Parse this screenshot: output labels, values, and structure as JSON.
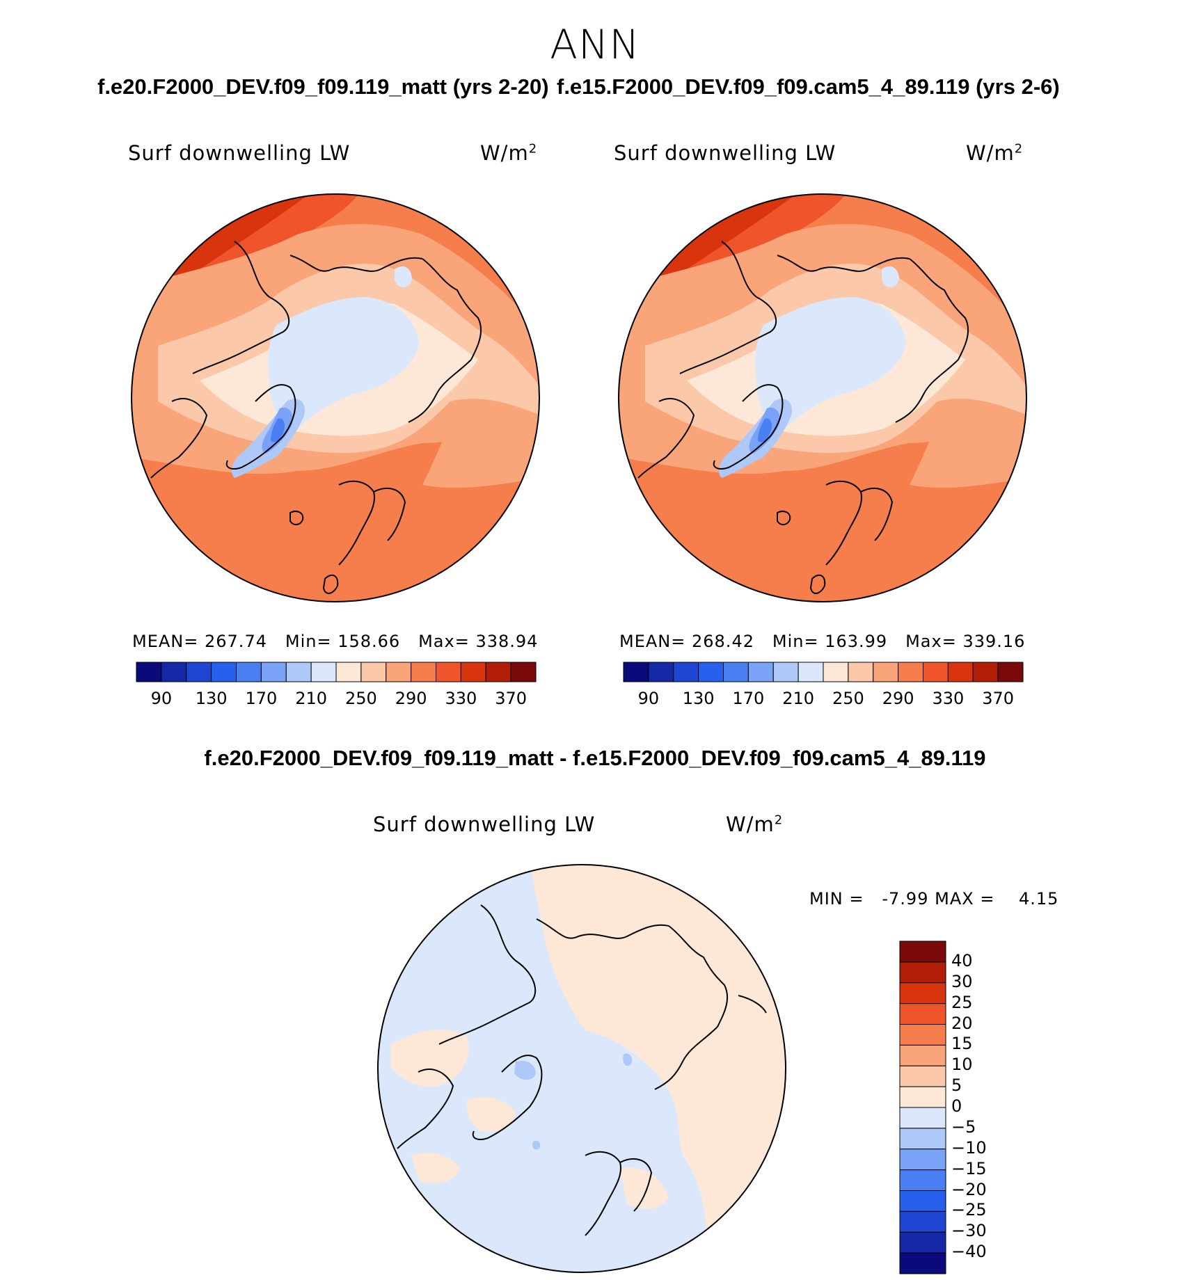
{
  "season": "ANN",
  "panels": [
    {
      "case_title": "f.e20.F2000_DEV.f09_f09.119_matt (yrs 2-20)",
      "variable": "Surf downwelling LW",
      "units": "W/m",
      "units_sup": "2",
      "stats": {
        "mean_label": "MEAN=",
        "mean": "267.74",
        "min_label": "Min=",
        "min": "158.66",
        "max_label": "Max=",
        "max": "338.94"
      }
    },
    {
      "case_title": "f.e15.F2000_DEV.f09_f09.cam5_4_89.119 (yrs 2-6)",
      "variable": "Surf downwelling LW",
      "units": "W/m",
      "units_sup": "2",
      "stats": {
        "mean_label": "MEAN=",
        "mean": "268.42",
        "min_label": "Min=",
        "min": "163.99",
        "max_label": "Max=",
        "max": "339.16"
      }
    }
  ],
  "colorbar": {
    "colors": [
      "#0a0a7a",
      "#1428a8",
      "#1e46d2",
      "#2860ee",
      "#4a7ff2",
      "#7aa2f6",
      "#aec8f8",
      "#dbe8fb",
      "#fde8d8",
      "#fcc8aa",
      "#faa47a",
      "#f67e4c",
      "#f0542a",
      "#d8340e",
      "#b01e08",
      "#7a0a0a"
    ],
    "tick_labels": [
      "90",
      "130",
      "170",
      "210",
      "250",
      "290",
      "330",
      "370"
    ]
  },
  "difference": {
    "title": "f.e20.F2000_DEV.f09_f09.119_matt - f.e15.F2000_DEV.f09_f09.cam5_4_89.119",
    "variable": "Surf downwelling LW",
    "units": "W/m",
    "units_sup": "2",
    "min_label": "MIN =",
    "min": "-7.99",
    "max_label": "MAX =",
    "max": "4.15",
    "colorbar_labels": [
      "40",
      "30",
      "25",
      "20",
      "15",
      "10",
      "5",
      "0",
      "−5",
      "−10",
      "−15",
      "−20",
      "−25",
      "−30",
      "−40"
    ],
    "colorbar_colors": [
      "#7a0a0a",
      "#b01e08",
      "#d8340e",
      "#f0542a",
      "#f67e4c",
      "#faa47a",
      "#fcc8aa",
      "#fde8d8",
      "#dbe8fb",
      "#aec8f8",
      "#7aa2f6",
      "#4a7ff2",
      "#2860ee",
      "#1e46d2",
      "#1428a8",
      "#0a0a7a"
    ]
  }
}
